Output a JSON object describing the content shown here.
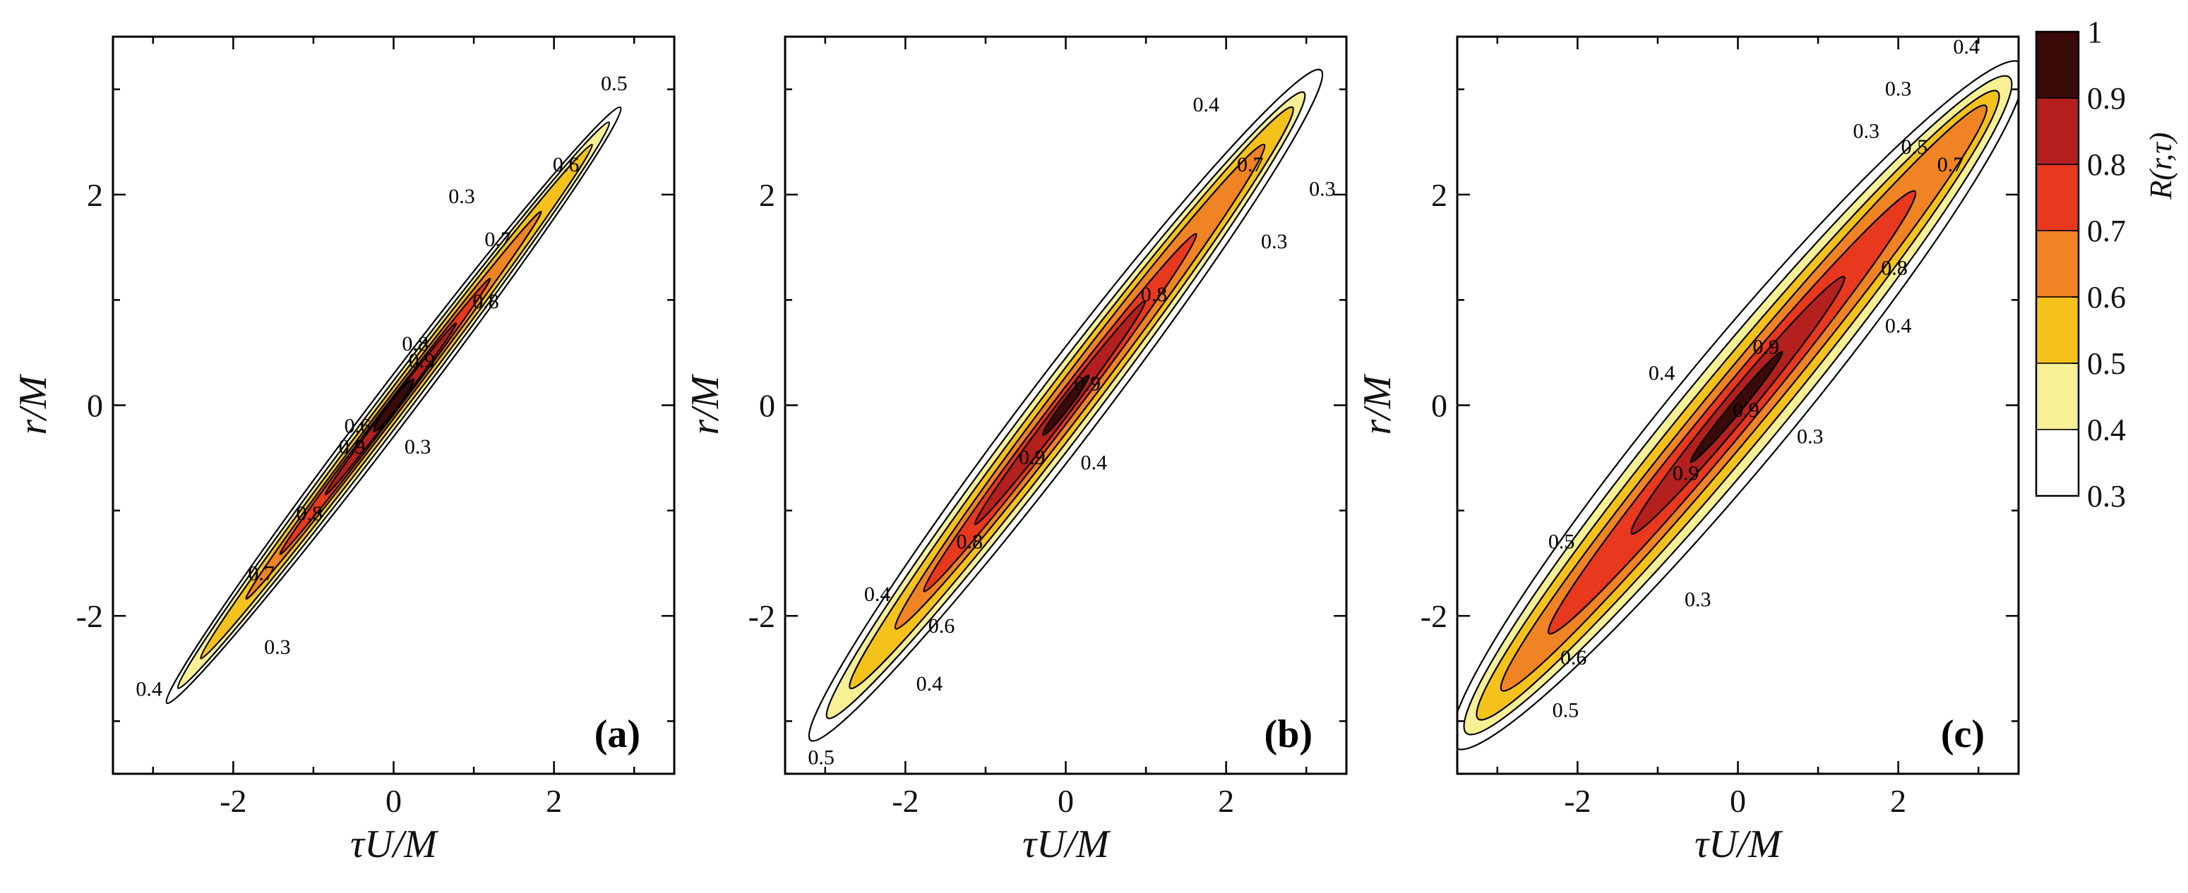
{
  "chart_data": [
    {
      "type": "contour",
      "panel": "(a)",
      "xlabel": "τU/M",
      "ylabel": "r/M",
      "xlim": [
        -3.5,
        3.5
      ],
      "ylim": [
        -3.5,
        3.5
      ],
      "xticks": [
        "-2",
        "0",
        "2"
      ],
      "yticks": [
        "-2",
        "0",
        "2"
      ],
      "levels": [
        0.3,
        0.4,
        0.5,
        0.6,
        0.7,
        0.8,
        0.9
      ],
      "ridge_slope": 1.0,
      "contours": [
        {
          "level": 0.3,
          "half_width": 0.33,
          "t_min": -4.0,
          "t_max": 4.0
        },
        {
          "level": 0.4,
          "half_width": 0.26,
          "t_min": -3.8,
          "t_max": 3.8
        },
        {
          "level": 0.5,
          "half_width": 0.2,
          "t_min": -3.4,
          "t_max": 3.5
        },
        {
          "level": 0.6,
          "half_width": 0.14,
          "t_min": -2.6,
          "t_max": 2.6
        },
        {
          "level": 0.7,
          "half_width": 0.1,
          "t_min": -2.0,
          "t_max": 1.7
        },
        {
          "level": 0.8,
          "half_width": 0.07,
          "t_min": -1.2,
          "t_max": 1.1
        },
        {
          "level": 0.9,
          "half_width": 0.04,
          "t_min": -0.35,
          "t_max": 0.35
        }
      ],
      "annotations": [
        {
          "text": "0.5",
          "x": 2.75,
          "y": 3.05
        },
        {
          "text": "0.6",
          "x": 2.15,
          "y": 2.28
        },
        {
          "text": "0.3",
          "x": 0.85,
          "y": 1.98
        },
        {
          "text": "0.7",
          "x": 1.3,
          "y": 1.57
        },
        {
          "text": "0.8",
          "x": 1.15,
          "y": 0.98
        },
        {
          "text": "0.8",
          "x": 0.27,
          "y": 0.58
        },
        {
          "text": "0.9",
          "x": 0.35,
          "y": 0.42
        },
        {
          "text": "0.6",
          "x": -0.45,
          "y": -0.2
        },
        {
          "text": "0.9",
          "x": -0.52,
          "y": -0.4
        },
        {
          "text": "0.3",
          "x": 0.3,
          "y": -0.4
        },
        {
          "text": "0.8",
          "x": -1.05,
          "y": -1.03
        },
        {
          "text": "0.7",
          "x": -1.65,
          "y": -1.6
        },
        {
          "text": "0.3",
          "x": -1.45,
          "y": -2.3
        },
        {
          "text": "0.4",
          "x": -3.05,
          "y": -2.7
        }
      ]
    },
    {
      "type": "contour",
      "panel": "(b)",
      "xlabel": "τU/M",
      "ylabel": "r/M",
      "xlim": [
        -3.5,
        3.5
      ],
      "ylim": [
        -3.5,
        3.5
      ],
      "xticks": [
        "-2",
        "0",
        "2"
      ],
      "yticks": [
        "-2",
        "0",
        "2"
      ],
      "levels": [
        0.3,
        0.4,
        0.5,
        0.6,
        0.7,
        0.8,
        0.9
      ],
      "ridge_slope": 1.0,
      "contours": [
        {
          "level": 0.3,
          "half_width": 0.62,
          "t_min": -4.5,
          "t_max": 4.5
        },
        {
          "level": 0.4,
          "half_width": 0.5,
          "t_min": -4.2,
          "t_max": 4.2
        },
        {
          "level": 0.5,
          "half_width": 0.4,
          "t_min": -3.8,
          "t_max": 4.0
        },
        {
          "level": 0.6,
          "half_width": 0.3,
          "t_min": -3.0,
          "t_max": 3.5
        },
        {
          "level": 0.7,
          "half_width": 0.2,
          "t_min": -2.5,
          "t_max": 2.3
        },
        {
          "level": 0.8,
          "half_width": 0.13,
          "t_min": -1.6,
          "t_max": 1.4
        },
        {
          "level": 0.9,
          "half_width": 0.06,
          "t_min": -0.4,
          "t_max": 0.4
        }
      ],
      "annotations": [
        {
          "text": "0.4",
          "x": 1.75,
          "y": 2.85
        },
        {
          "text": "0.7",
          "x": 2.3,
          "y": 2.28
        },
        {
          "text": "0.3",
          "x": 3.2,
          "y": 2.05
        },
        {
          "text": "0.3",
          "x": 2.6,
          "y": 1.55
        },
        {
          "text": "0.8",
          "x": 1.1,
          "y": 1.05
        },
        {
          "text": "0.9",
          "x": 0.27,
          "y": 0.2
        },
        {
          "text": "0.9",
          "x": -0.42,
          "y": -0.5
        },
        {
          "text": "0.4",
          "x": 0.35,
          "y": -0.55
        },
        {
          "text": "0.8",
          "x": -1.2,
          "y": -1.3
        },
        {
          "text": "0.4",
          "x": -2.35,
          "y": -1.8
        },
        {
          "text": "0.6",
          "x": -1.55,
          "y": -2.1
        },
        {
          "text": "0.4",
          "x": -1.7,
          "y": -2.65
        },
        {
          "text": "0.5",
          "x": -3.05,
          "y": -3.35
        }
      ]
    },
    {
      "type": "contour",
      "panel": "(c)",
      "xlabel": "τU/M",
      "ylabel": "r/M",
      "xlim": [
        -3.5,
        3.5
      ],
      "ylim": [
        -3.5,
        3.5
      ],
      "xticks": [
        "-2",
        "0",
        "2"
      ],
      "yticks": [
        "-2",
        "0",
        "2"
      ],
      "levels": [
        0.3,
        0.4,
        0.5,
        0.6,
        0.7,
        0.8,
        0.9
      ],
      "ridge_slope": 0.92,
      "contours": [
        {
          "level": 0.3,
          "half_width": 1.0,
          "t_min": -4.8,
          "t_max": 4.8
        },
        {
          "level": 0.4,
          "half_width": 0.82,
          "t_min": -4.6,
          "t_max": 4.6
        },
        {
          "level": 0.5,
          "half_width": 0.66,
          "t_min": -4.4,
          "t_max": 4.4
        },
        {
          "level": 0.6,
          "half_width": 0.5,
          "t_min": -4.0,
          "t_max": 4.2
        },
        {
          "level": 0.7,
          "half_width": 0.36,
          "t_min": -3.2,
          "t_max": 3.0
        },
        {
          "level": 0.8,
          "half_width": 0.23,
          "t_min": -1.8,
          "t_max": 1.8
        },
        {
          "level": 0.9,
          "half_width": 0.1,
          "t_min": -0.8,
          "t_max": 0.75
        }
      ],
      "annotations": [
        {
          "text": "0.4",
          "x": 2.85,
          "y": 3.4
        },
        {
          "text": "0.3",
          "x": 2.0,
          "y": 3.0
        },
        {
          "text": "0.3",
          "x": 1.6,
          "y": 2.6
        },
        {
          "text": "0.5",
          "x": 2.2,
          "y": 2.45
        },
        {
          "text": "0.7",
          "x": 2.65,
          "y": 2.28
        },
        {
          "text": "0.8",
          "x": 1.95,
          "y": 1.3
        },
        {
          "text": "0.4",
          "x": 2.0,
          "y": 0.75
        },
        {
          "text": "0.4",
          "x": -0.95,
          "y": 0.3
        },
        {
          "text": "0.9",
          "x": 0.35,
          "y": 0.55
        },
        {
          "text": "0.9",
          "x": 0.1,
          "y": -0.05
        },
        {
          "text": "0.3",
          "x": 0.9,
          "y": -0.3
        },
        {
          "text": "0.9",
          "x": -0.65,
          "y": -0.65
        },
        {
          "text": "0.5",
          "x": -2.2,
          "y": -1.3
        },
        {
          "text": "0.3",
          "x": -0.5,
          "y": -1.85
        },
        {
          "text": "0.6",
          "x": -2.05,
          "y": -2.4
        },
        {
          "text": "0.5",
          "x": -2.15,
          "y": -2.9
        }
      ]
    }
  ],
  "colorbar": {
    "title": "R(r,τ)",
    "labels": [
      "1",
      "0.9",
      "0.8",
      "0.7",
      "0.6",
      "0.5",
      "0.4",
      "0.3"
    ],
    "bands": [
      {
        "range": "0.9–1",
        "color": "#3a0a08"
      },
      {
        "range": "0.8–0.9",
        "color": "#b3201e"
      },
      {
        "range": "0.7–0.8",
        "color": "#e8381e"
      },
      {
        "range": "0.6–0.7",
        "color": "#f08323"
      },
      {
        "range": "0.5–0.6",
        "color": "#f5c21b"
      },
      {
        "range": "0.4–0.5",
        "color": "#f7f095"
      },
      {
        "range": "0.3–0.4",
        "color": "#ffffff"
      }
    ]
  },
  "colors": {
    "0.3": "#ffffff",
    "0.4": "#f7f095",
    "0.5": "#f5c21b",
    "0.6": "#f08323",
    "0.7": "#e8381e",
    "0.8": "#b3201e",
    "0.9": "#3a0a08"
  }
}
